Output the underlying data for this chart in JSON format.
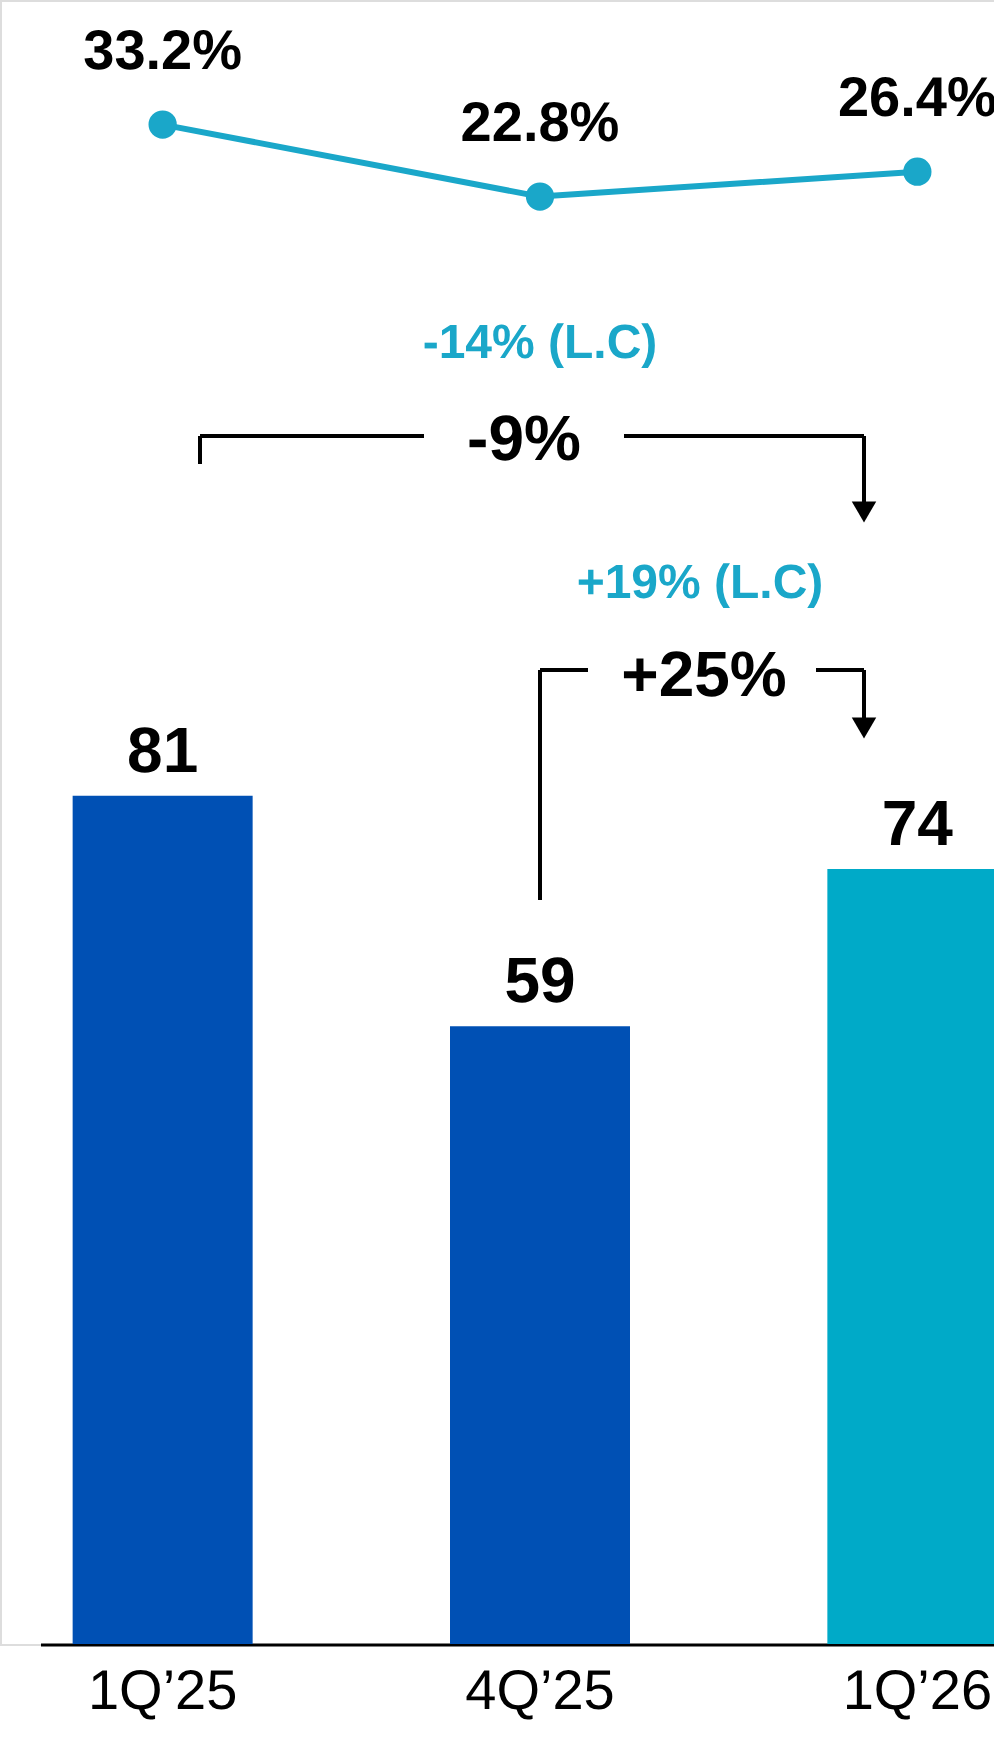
{
  "chart_data": {
    "type": "bar",
    "categories": [
      "1Q’25",
      "4Q’25",
      "1Q’26"
    ],
    "series": [
      {
        "colors": [
          "#0050b4",
          "#0050b4",
          "#00aac8"
        ],
        "values": [
          81,
          59,
          74
        ]
      },
      {
        "type": "line",
        "axis": "y2",
        "color": "#1aa7c9",
        "values": [
          33.2,
          22.8,
          26.4
        ],
        "value_labels": [
          "33.2%",
          "22.8%",
          "26.4%"
        ]
      }
    ],
    "ylim": [
      0,
      157
    ],
    "tick_labels": "x",
    "grid": false,
    "data_labels": true,
    "marker": "circle",
    "line_style": "solid",
    "annotations": [
      "-14%  (L.C)",
      "-9%",
      "+19%  (L.C)",
      "+25%"
    ]
  }
}
